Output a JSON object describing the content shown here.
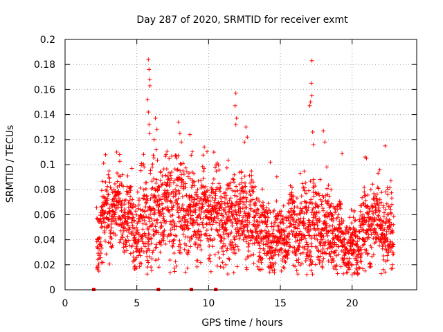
{
  "chart_data": {
    "type": "scatter",
    "title": "Day 287 of 2020, SRMTID for receiver exmt",
    "xlabel": "GPS time / hours",
    "ylabel": "SRMTID / TECUs",
    "xlim": [
      0,
      24.5
    ],
    "ylim": [
      0,
      0.2
    ],
    "x_ticks": [
      0,
      5,
      10,
      15,
      20
    ],
    "x_tick_labels": [
      "0",
      "5",
      "10",
      "15",
      "20"
    ],
    "y_ticks": [
      0,
      0.02,
      0.04,
      0.06,
      0.08,
      0.1,
      0.12,
      0.14,
      0.16,
      0.18,
      0.2
    ],
    "y_tick_labels": [
      "0",
      "0.02",
      "0.04",
      "0.06",
      "0.08",
      "0.1",
      "0.12",
      "0.14",
      "0.16",
      "0.18",
      "0.2"
    ],
    "grid": true,
    "marker": "+",
    "series_color": "#ff0000",
    "baseline_markers_x": [
      2.0,
      6.5,
      8.8,
      10.5
    ],
    "density_profile": [
      {
        "x": 2.2,
        "center": 0.05,
        "spread": 0.02
      },
      {
        "x": 3.0,
        "center": 0.065,
        "spread": 0.022
      },
      {
        "x": 4.0,
        "center": 0.062,
        "spread": 0.02
      },
      {
        "x": 5.0,
        "center": 0.05,
        "spread": 0.02
      },
      {
        "x": 6.0,
        "center": 0.06,
        "spread": 0.028
      },
      {
        "x": 7.0,
        "center": 0.062,
        "spread": 0.025
      },
      {
        "x": 8.0,
        "center": 0.065,
        "spread": 0.03
      },
      {
        "x": 9.0,
        "center": 0.058,
        "spread": 0.022
      },
      {
        "x": 10.0,
        "center": 0.06,
        "spread": 0.022
      },
      {
        "x": 11.0,
        "center": 0.06,
        "spread": 0.025
      },
      {
        "x": 12.0,
        "center": 0.06,
        "spread": 0.025
      },
      {
        "x": 13.0,
        "center": 0.05,
        "spread": 0.02
      },
      {
        "x": 14.0,
        "center": 0.045,
        "spread": 0.018
      },
      {
        "x": 15.0,
        "center": 0.042,
        "spread": 0.018
      },
      {
        "x": 16.0,
        "center": 0.048,
        "spread": 0.02
      },
      {
        "x": 17.0,
        "center": 0.055,
        "spread": 0.025
      },
      {
        "x": 18.0,
        "center": 0.05,
        "spread": 0.022
      },
      {
        "x": 19.0,
        "center": 0.042,
        "spread": 0.018
      },
      {
        "x": 20.0,
        "center": 0.038,
        "spread": 0.015
      },
      {
        "x": 21.0,
        "center": 0.048,
        "spread": 0.02
      },
      {
        "x": 22.0,
        "center": 0.05,
        "spread": 0.02
      },
      {
        "x": 22.9,
        "center": 0.045,
        "spread": 0.018
      }
    ],
    "highlight_points": [
      {
        "x": 5.8,
        "y": 0.184
      },
      {
        "x": 5.85,
        "y": 0.176
      },
      {
        "x": 5.9,
        "y": 0.168
      },
      {
        "x": 5.92,
        "y": 0.163
      },
      {
        "x": 5.75,
        "y": 0.152
      },
      {
        "x": 5.8,
        "y": 0.142
      },
      {
        "x": 5.85,
        "y": 0.132
      },
      {
        "x": 5.9,
        "y": 0.125
      },
      {
        "x": 6.3,
        "y": 0.137
      },
      {
        "x": 6.4,
        "y": 0.128
      },
      {
        "x": 6.2,
        "y": 0.12
      },
      {
        "x": 7.9,
        "y": 0.134
      },
      {
        "x": 8.0,
        "y": 0.125
      },
      {
        "x": 8.1,
        "y": 0.118
      },
      {
        "x": 8.7,
        "y": 0.124
      },
      {
        "x": 9.7,
        "y": 0.114
      },
      {
        "x": 11.9,
        "y": 0.157
      },
      {
        "x": 11.85,
        "y": 0.147
      },
      {
        "x": 11.95,
        "y": 0.137
      },
      {
        "x": 11.9,
        "y": 0.132
      },
      {
        "x": 12.6,
        "y": 0.13
      },
      {
        "x": 12.7,
        "y": 0.122
      },
      {
        "x": 12.5,
        "y": 0.118
      },
      {
        "x": 17.2,
        "y": 0.183
      },
      {
        "x": 17.15,
        "y": 0.165
      },
      {
        "x": 17.2,
        "y": 0.155
      },
      {
        "x": 17.1,
        "y": 0.15
      },
      {
        "x": 17.05,
        "y": 0.147
      },
      {
        "x": 17.25,
        "y": 0.126
      },
      {
        "x": 17.3,
        "y": 0.116
      },
      {
        "x": 18.0,
        "y": 0.127
      },
      {
        "x": 18.1,
        "y": 0.118
      },
      {
        "x": 22.3,
        "y": 0.115
      },
      {
        "x": 20.9,
        "y": 0.106
      },
      {
        "x": 21.0,
        "y": 0.105
      },
      {
        "x": 3.6,
        "y": 0.11
      },
      {
        "x": 3.8,
        "y": 0.108
      },
      {
        "x": 14.3,
        "y": 0.102
      },
      {
        "x": 19.3,
        "y": 0.109
      },
      {
        "x": 20.0,
        "y": 0.012
      },
      {
        "x": 2.55,
        "y": 0.022
      },
      {
        "x": 10.6,
        "y": 0.019
      },
      {
        "x": 16.5,
        "y": 0.021
      }
    ]
  }
}
